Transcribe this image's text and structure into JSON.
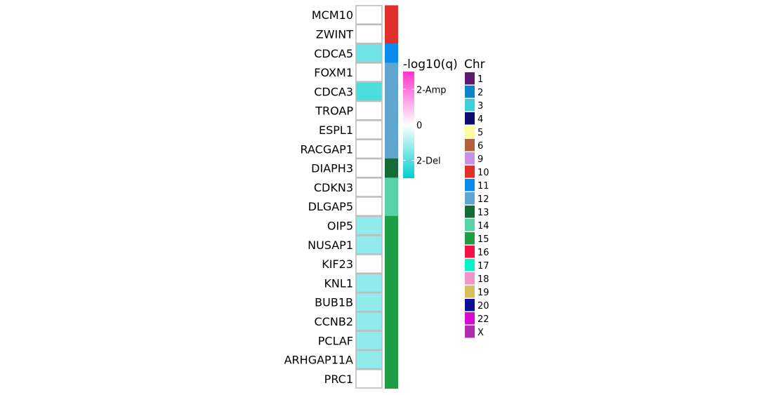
{
  "chart_data": {
    "type": "heatmap",
    "genes": [
      "MCM10",
      "ZWINT",
      "CDCA5",
      "FOXM1",
      "CDCA3",
      "TROAP",
      "ESPL1",
      "RACGAP1",
      "DIAPH3",
      "CDKN3",
      "DLGAP5",
      "OIP5",
      "NUSAP1",
      "KIF23",
      "KNL1",
      "BUB1B",
      "CCNB2",
      "PCLAF",
      "ARHGAP11A",
      "PRC1"
    ],
    "cnv_values": [
      0,
      0,
      -1.7,
      0,
      -2.1,
      0,
      0,
      0,
      0,
      0,
      0,
      -1.3,
      -1.3,
      0,
      -1.3,
      -1.3,
      -1.3,
      -1.3,
      -1.3,
      0
    ],
    "chromosomes": [
      "10",
      "10",
      "11",
      "12",
      "12",
      "12",
      "12",
      "12",
      "13",
      "14",
      "14",
      "15",
      "15",
      "15",
      "15",
      "15",
      "15",
      "15",
      "15",
      "15"
    ],
    "color_legend": {
      "title": "-log10(q)",
      "ticks": [
        {
          "value": 2,
          "label": "2-Amp"
        },
        {
          "value": 0,
          "label": "0"
        },
        {
          "value": -2,
          "label": "2-Del"
        }
      ],
      "range": [
        -3,
        3
      ],
      "colors": {
        "amp": "#ff33cc",
        "mid": "#ffffff",
        "del": "#00ced1"
      }
    },
    "chr_legend": {
      "title": "Chr",
      "items": [
        {
          "label": "1",
          "color": "#5e1a6e"
        },
        {
          "label": "2",
          "color": "#0b84c6"
        },
        {
          "label": "3",
          "color": "#3ecfdb"
        },
        {
          "label": "4",
          "color": "#0c0b6e"
        },
        {
          "label": "5",
          "color": "#fdfd99"
        },
        {
          "label": "6",
          "color": "#b3613d"
        },
        {
          "label": "9",
          "color": "#c792e8"
        },
        {
          "label": "10",
          "color": "#e0302b"
        },
        {
          "label": "11",
          "color": "#0a8ced"
        },
        {
          "label": "12",
          "color": "#5ea5cf"
        },
        {
          "label": "13",
          "color": "#156b36"
        },
        {
          "label": "14",
          "color": "#57d2a6"
        },
        {
          "label": "15",
          "color": "#1e9d45"
        },
        {
          "label": "16",
          "color": "#f2104a"
        },
        {
          "label": "17",
          "color": "#06f2c9"
        },
        {
          "label": "18",
          "color": "#f195c8"
        },
        {
          "label": "19",
          "color": "#dbbd5c"
        },
        {
          "label": "20",
          "color": "#0d0f92"
        },
        {
          "label": "22",
          "color": "#d80bd2"
        },
        {
          "label": "X",
          "color": "#b02bb0"
        }
      ]
    }
  }
}
